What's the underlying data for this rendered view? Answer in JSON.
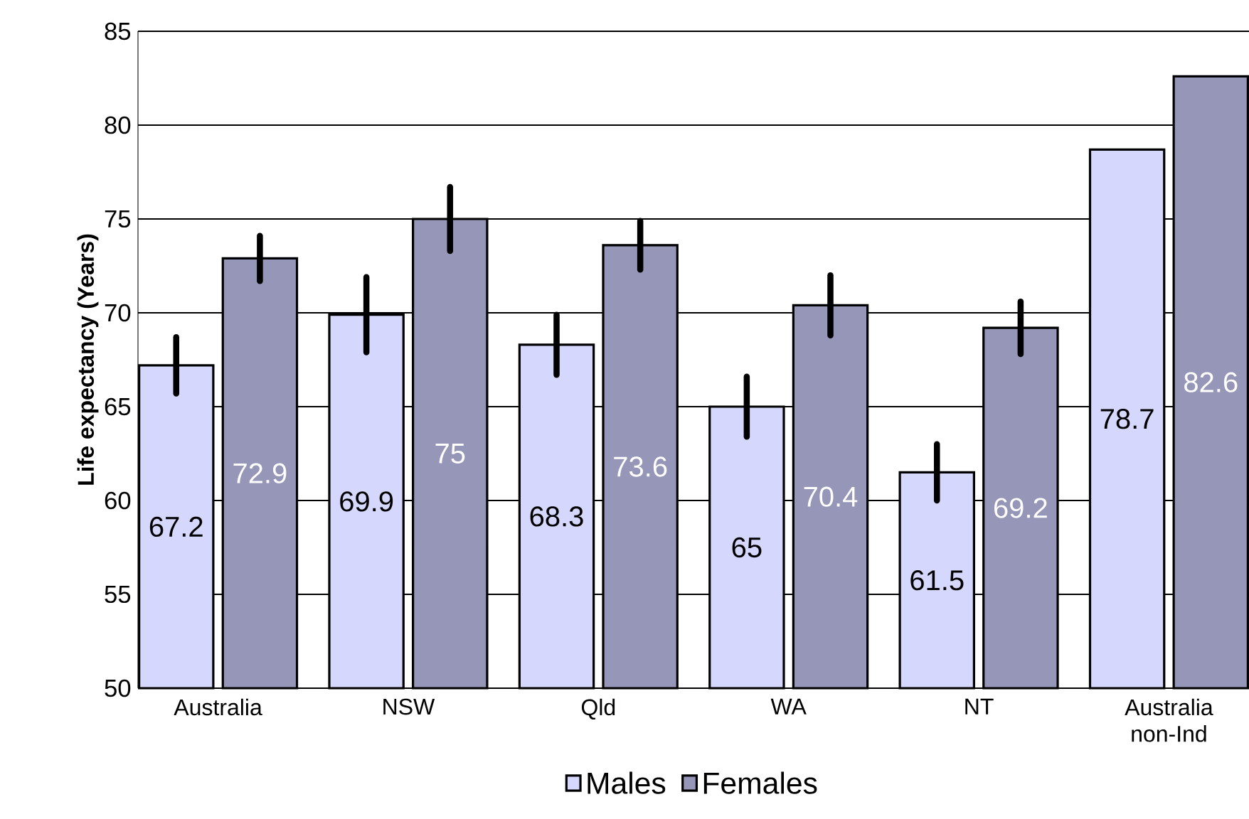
{
  "chart_data": {
    "type": "bar",
    "ylabel": "Life expectancy (Years)",
    "categories": [
      "Australia",
      "NSW",
      "Qld",
      "WA",
      "NT",
      "Australia non-Ind"
    ],
    "series": [
      {
        "name": "Males",
        "color": "#d6d7fc",
        "values": [
          67.2,
          69.9,
          68.3,
          65,
          61.5,
          78.7
        ],
        "errors": [
          1.5,
          2.0,
          1.6,
          1.6,
          1.5,
          null
        ]
      },
      {
        "name": "Females",
        "color": "#9696b8",
        "values": [
          72.9,
          75,
          73.6,
          70.4,
          69.2,
          82.6
        ],
        "errors": [
          1.2,
          1.7,
          1.3,
          1.6,
          1.4,
          null
        ]
      }
    ],
    "ylim": [
      50,
      85
    ],
    "yticks": [
      50,
      55,
      60,
      65,
      70,
      75,
      80,
      85
    ],
    "grid": "y",
    "legend": "bottom",
    "data_labels": true
  }
}
